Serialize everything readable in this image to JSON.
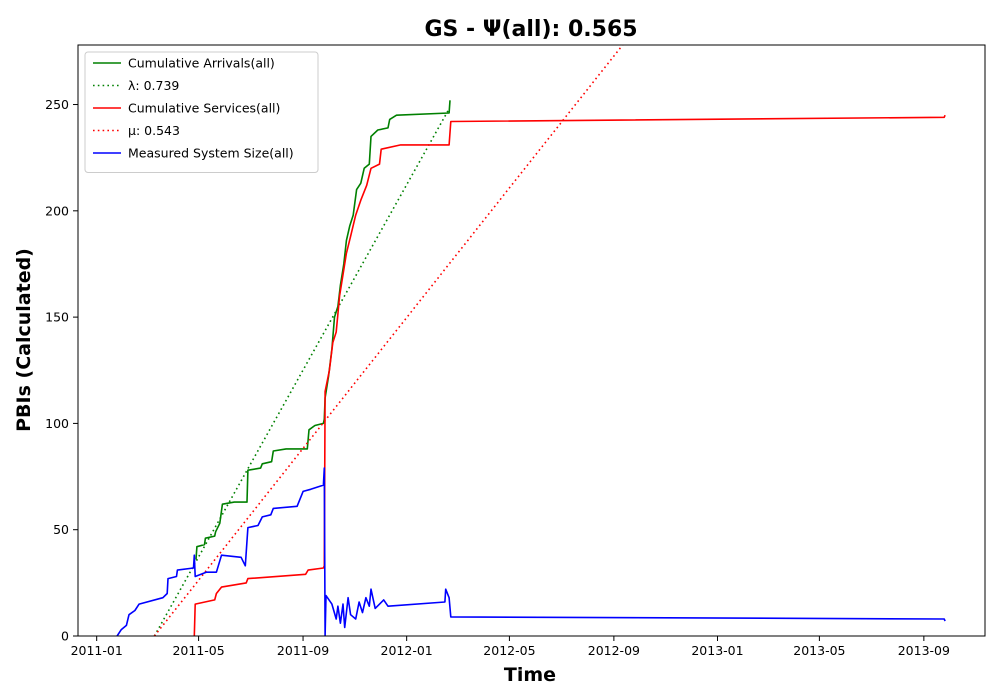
{
  "chart_data": {
    "type": "line",
    "title": "GS -  Ψ(all): 0.565",
    "xlabel": "Time",
    "ylabel": "PBIs (Calculated)",
    "xlim": [
      "2010-12-10",
      "2013-11-12"
    ],
    "ylim": [
      0,
      278
    ],
    "x_ticks": [
      "2011-01",
      "2011-05",
      "2011-09",
      "2012-01",
      "2012-05",
      "2012-09",
      "2013-01",
      "2013-05",
      "2013-09"
    ],
    "y_ticks": [
      0,
      50,
      100,
      150,
      200,
      250
    ],
    "grid": false,
    "legend_position": "top-left",
    "series": [
      {
        "name": "Cumulative Arrivals(all)",
        "color": "#008000",
        "style": "solid",
        "points": [
          [
            "2011-04-28",
            36
          ],
          [
            "2011-04-29",
            42
          ],
          [
            "2011-05-08",
            43
          ],
          [
            "2011-05-09",
            46
          ],
          [
            "2011-05-20",
            47
          ],
          [
            "2011-05-21",
            49
          ],
          [
            "2011-05-26",
            53
          ],
          [
            "2011-05-29",
            62
          ],
          [
            "2011-06-12",
            63
          ],
          [
            "2011-06-27",
            63
          ],
          [
            "2011-06-28",
            78
          ],
          [
            "2011-07-13",
            79
          ],
          [
            "2011-07-15",
            81
          ],
          [
            "2011-07-26",
            82
          ],
          [
            "2011-07-28",
            87
          ],
          [
            "2011-08-12",
            88
          ],
          [
            "2011-09-06",
            88
          ],
          [
            "2011-09-08",
            97
          ],
          [
            "2011-09-15",
            99
          ],
          [
            "2011-09-25",
            100
          ],
          [
            "2011-09-26",
            102
          ],
          [
            "2011-09-27",
            112
          ],
          [
            "2011-10-01",
            122
          ],
          [
            "2011-10-05",
            135
          ],
          [
            "2011-10-08",
            150
          ],
          [
            "2011-10-12",
            155
          ],
          [
            "2011-10-15",
            165
          ],
          [
            "2011-10-19",
            175
          ],
          [
            "2011-10-22",
            186
          ],
          [
            "2011-10-26",
            193
          ],
          [
            "2011-10-30",
            198
          ],
          [
            "2011-11-03",
            210
          ],
          [
            "2011-11-08",
            213
          ],
          [
            "2011-11-12",
            220
          ],
          [
            "2011-11-18",
            222
          ],
          [
            "2011-11-20",
            235
          ],
          [
            "2011-11-28",
            238
          ],
          [
            "2011-12-10",
            239
          ],
          [
            "2011-12-12",
            243
          ],
          [
            "2011-12-20",
            245
          ],
          [
            "2012-02-20",
            246
          ],
          [
            "2012-02-21",
            252
          ]
        ]
      },
      {
        "name": "λ: 0.739",
        "color": "#008000",
        "style": "dotted",
        "points": [
          [
            "2011-03-10",
            0
          ],
          [
            "2012-02-20",
            248
          ]
        ]
      },
      {
        "name": "Cumulative Services(all)",
        "color": "#ff0000",
        "style": "solid",
        "points": [
          [
            "2011-04-26",
            0
          ],
          [
            "2011-04-27",
            15
          ],
          [
            "2011-05-20",
            17
          ],
          [
            "2011-05-22",
            20
          ],
          [
            "2011-05-28",
            23
          ],
          [
            "2011-06-26",
            25
          ],
          [
            "2011-06-28",
            27
          ],
          [
            "2011-09-04",
            29
          ],
          [
            "2011-09-07",
            31
          ],
          [
            "2011-09-25",
            32
          ],
          [
            "2011-09-26",
            33
          ],
          [
            "2011-09-27",
            115
          ],
          [
            "2011-10-02",
            125
          ],
          [
            "2011-10-06",
            138
          ],
          [
            "2011-10-10",
            143
          ],
          [
            "2011-10-14",
            160
          ],
          [
            "2011-10-18",
            170
          ],
          [
            "2011-10-22",
            180
          ],
          [
            "2011-10-27",
            188
          ],
          [
            "2011-11-02",
            198
          ],
          [
            "2011-11-08",
            205
          ],
          [
            "2011-11-15",
            212
          ],
          [
            "2011-11-20",
            220
          ],
          [
            "2011-11-30",
            222
          ],
          [
            "2011-12-02",
            229
          ],
          [
            "2011-12-25",
            231
          ],
          [
            "2012-02-20",
            231
          ],
          [
            "2012-02-22",
            242
          ],
          [
            "2013-09-25",
            244
          ],
          [
            "2013-09-26",
            245
          ]
        ]
      },
      {
        "name": "μ: 0.543",
        "color": "#ff0000",
        "style": "dotted",
        "points": [
          [
            "2011-03-10",
            0
          ],
          [
            "2012-10-25",
            300
          ]
        ]
      },
      {
        "name": "Measured System Size(all)",
        "color": "#0000ff",
        "style": "solid",
        "points": [
          [
            "2011-01-25",
            0
          ],
          [
            "2011-01-30",
            3
          ],
          [
            "2011-02-05",
            5
          ],
          [
            "2011-02-08",
            10
          ],
          [
            "2011-02-15",
            12
          ],
          [
            "2011-02-20",
            15
          ],
          [
            "2011-03-20",
            18
          ],
          [
            "2011-03-25",
            20
          ],
          [
            "2011-03-26",
            27
          ],
          [
            "2011-04-05",
            28
          ],
          [
            "2011-04-06",
            31
          ],
          [
            "2011-04-25",
            32
          ],
          [
            "2011-04-26",
            38
          ],
          [
            "2011-04-27",
            28
          ],
          [
            "2011-05-10",
            30
          ],
          [
            "2011-05-22",
            30
          ],
          [
            "2011-05-28",
            38
          ],
          [
            "2011-06-20",
            37
          ],
          [
            "2011-06-25",
            33
          ],
          [
            "2011-06-28",
            51
          ],
          [
            "2011-07-10",
            52
          ],
          [
            "2011-07-15",
            56
          ],
          [
            "2011-07-25",
            57
          ],
          [
            "2011-07-28",
            60
          ],
          [
            "2011-08-25",
            61
          ],
          [
            "2011-09-01",
            68
          ],
          [
            "2011-09-10",
            69
          ],
          [
            "2011-09-25",
            71
          ],
          [
            "2011-09-26",
            79
          ],
          [
            "2011-09-27",
            0
          ],
          [
            "2011-09-28",
            19
          ],
          [
            "2011-10-05",
            15
          ],
          [
            "2011-10-10",
            8
          ],
          [
            "2011-10-12",
            14
          ],
          [
            "2011-10-15",
            6
          ],
          [
            "2011-10-18",
            15
          ],
          [
            "2011-10-20",
            4
          ],
          [
            "2011-10-24",
            18
          ],
          [
            "2011-10-27",
            10
          ],
          [
            "2011-11-02",
            8
          ],
          [
            "2011-11-06",
            16
          ],
          [
            "2011-11-10",
            11
          ],
          [
            "2011-11-14",
            18
          ],
          [
            "2011-11-18",
            14
          ],
          [
            "2011-11-20",
            22
          ],
          [
            "2011-11-25",
            13
          ],
          [
            "2011-12-05",
            17
          ],
          [
            "2011-12-10",
            14
          ],
          [
            "2012-02-15",
            16
          ],
          [
            "2012-02-16",
            22
          ],
          [
            "2012-02-20",
            18
          ],
          [
            "2012-02-22",
            9
          ],
          [
            "2013-09-25",
            8
          ],
          [
            "2013-09-26",
            7
          ]
        ]
      }
    ]
  }
}
